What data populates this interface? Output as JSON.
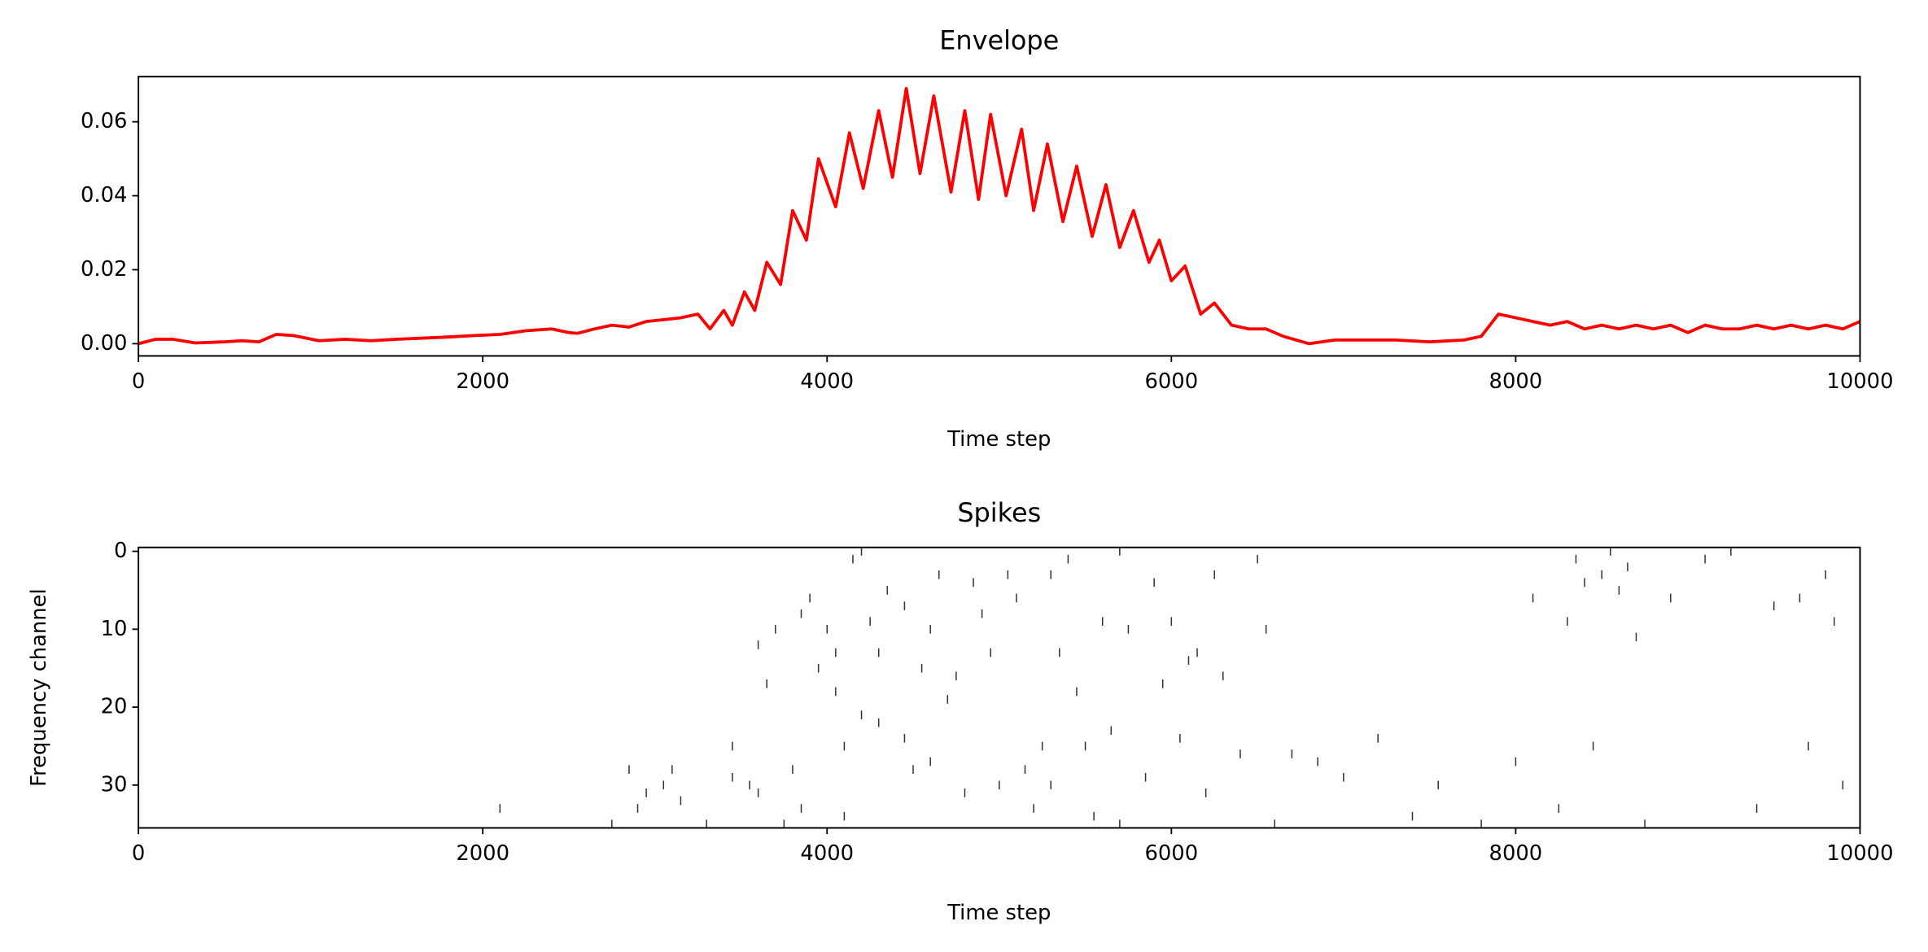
{
  "chart_data": [
    {
      "type": "line",
      "title": "Envelope",
      "x_label": "Time step",
      "xlim": [
        0,
        10000
      ],
      "xticks": [
        0,
        2000,
        4000,
        6000,
        8000,
        10000
      ],
      "ylim": [
        -0.0033,
        0.0722
      ],
      "yticks": [
        {
          "value": 0,
          "label": "0.00"
        },
        0.02,
        0.04,
        0.06
      ],
      "series": [
        {
          "color": "#ff0000",
          "x": [
            0,
            100,
            200,
            330,
            500,
            600,
            700,
            800,
            900,
            1050,
            1200,
            1350,
            1500,
            1650,
            1800,
            1950,
            2100,
            2250,
            2400,
            2500,
            2550,
            2650,
            2750,
            2850,
            2950,
            3050,
            3150,
            3250,
            3320,
            3400,
            3450,
            3520,
            3580,
            3650,
            3730,
            3800,
            3880,
            3950,
            4050,
            4130,
            4210,
            4300,
            4380,
            4460,
            4540,
            4620,
            4720,
            4800,
            4880,
            4950,
            5040,
            5130,
            5200,
            5280,
            5370,
            5450,
            5540,
            5620,
            5700,
            5780,
            5870,
            5930,
            6000,
            6080,
            6170,
            6250,
            6350,
            6450,
            6550,
            6650,
            6800,
            6950,
            7100,
            7300,
            7500,
            7700,
            7800,
            7900,
            8000,
            8100,
            8200,
            8300,
            8400,
            8500,
            8600,
            8700,
            8800,
            8900,
            9000,
            9100,
            9200,
            9300,
            9400,
            9500,
            9600,
            9700,
            9800,
            9900,
            10000
          ],
          "values": [
            0,
            0.0012,
            0.0012,
            0.0002,
            0.0005,
            0.0008,
            0.0005,
            0.0025,
            0.0022,
            0.0008,
            0.0012,
            0.0008,
            0.0012,
            0.0015,
            0.0018,
            0.0022,
            0.0025,
            0.0035,
            0.004,
            0.003,
            0.0028,
            0.004,
            0.005,
            0.0045,
            0.006,
            0.0065,
            0.007,
            0.008,
            0.004,
            0.009,
            0.005,
            0.014,
            0.009,
            0.022,
            0.016,
            0.036,
            0.028,
            0.05,
            0.037,
            0.057,
            0.042,
            0.063,
            0.045,
            0.069,
            0.046,
            0.067,
            0.041,
            0.063,
            0.039,
            0.062,
            0.04,
            0.058,
            0.036,
            0.054,
            0.033,
            0.048,
            0.029,
            0.043,
            0.026,
            0.036,
            0.022,
            0.028,
            0.017,
            0.021,
            0.008,
            0.011,
            0.005,
            0.004,
            0.004,
            0.002,
            0,
            0.001,
            0.001,
            0.001,
            0.0005,
            0.001,
            0.002,
            0.008,
            0.007,
            0.006,
            0.005,
            0.006,
            0.004,
            0.005,
            0.004,
            0.005,
            0.004,
            0.005,
            0.003,
            0.005,
            0.004,
            0.004,
            0.005,
            0.004,
            0.005,
            0.004,
            0.005,
            0.004,
            0.006
          ]
        }
      ]
    },
    {
      "type": "scatter",
      "title": "Spikes",
      "x_label": "Time step",
      "y_label": "Frequency channel",
      "xlim": [
        0,
        10000
      ],
      "xticks": [
        0,
        2000,
        4000,
        6000,
        8000,
        10000
      ],
      "ylim": [
        35.5,
        -0.5
      ],
      "yticks": [
        0,
        10,
        20,
        30
      ],
      "series": [
        {
          "color": "#333333",
          "x": [
            2100,
            2750,
            2850,
            2900,
            2950,
            3050,
            3100,
            3150,
            3300,
            3450,
            3450,
            3550,
            3600,
            3600,
            3650,
            3700,
            3750,
            3800,
            3850,
            3850,
            3900,
            3950,
            4000,
            4050,
            4050,
            4100,
            4100,
            4150,
            4200,
            4200,
            4250,
            4300,
            4300,
            4350,
            4450,
            4450,
            4500,
            4550,
            4600,
            4600,
            4650,
            4700,
            4750,
            4800,
            4850,
            4900,
            4950,
            5000,
            5050,
            5100,
            5150,
            5200,
            5250,
            5300,
            5300,
            5350,
            5400,
            5450,
            5500,
            5550,
            5600,
            5650,
            5700,
            5700,
            5750,
            5850,
            5900,
            5950,
            6000,
            6050,
            6100,
            6150,
            6200,
            6250,
            6300,
            6400,
            6500,
            6550,
            6600,
            6700,
            6850,
            7000,
            7200,
            7400,
            7550,
            7800,
            8000,
            8100,
            8250,
            8300,
            8350,
            8400,
            8450,
            8500,
            8550,
            8600,
            8650,
            8700,
            8750,
            8900,
            9100,
            9250,
            9400,
            9500,
            9650,
            9700,
            9800,
            9850,
            9900,
            10000
          ],
          "values": [
            33,
            35,
            28,
            33,
            31,
            30,
            28,
            32,
            35,
            25,
            29,
            30,
            12,
            31,
            17,
            10,
            35,
            28,
            8,
            33,
            6,
            15,
            10,
            13,
            18,
            25,
            34,
            1,
            0,
            21,
            9,
            13,
            22,
            5,
            7,
            24,
            28,
            15,
            10,
            27,
            3,
            19,
            16,
            31,
            4,
            8,
            13,
            30,
            3,
            6,
            28,
            33,
            25,
            3,
            30,
            13,
            1,
            18,
            25,
            34,
            9,
            23,
            0,
            35,
            10,
            29,
            4,
            17,
            9,
            24,
            14,
            13,
            31,
            3,
            16,
            26,
            1,
            10,
            35,
            26,
            27,
            29,
            24,
            34,
            30,
            35,
            27,
            6,
            33,
            9,
            1,
            4,
            25,
            3,
            0,
            5,
            2,
            11,
            35,
            6,
            1,
            0,
            33,
            7,
            6,
            25,
            3,
            9,
            30,
            26
          ]
        }
      ]
    }
  ]
}
